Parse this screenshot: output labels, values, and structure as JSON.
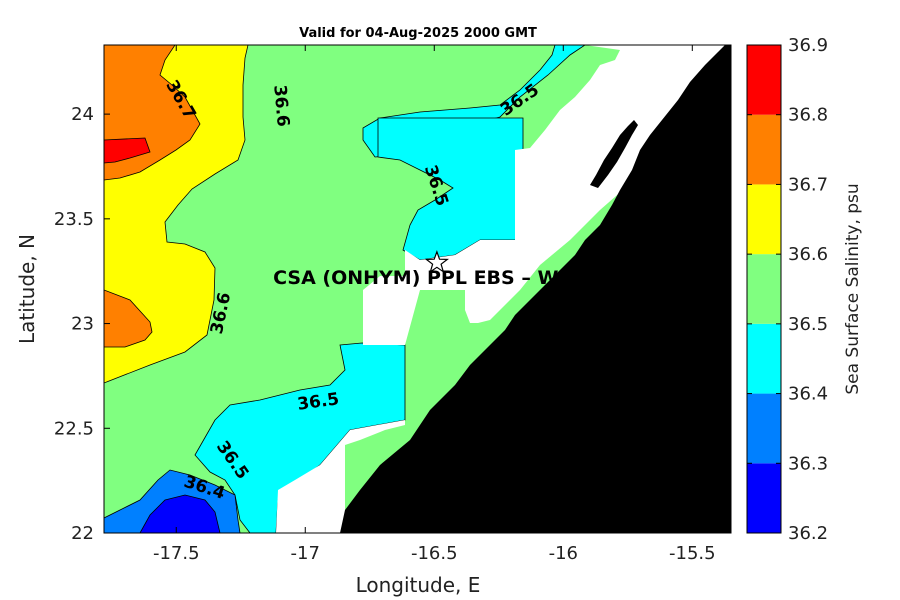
{
  "title": "Valid for 04-Aug-2025 2000 GMT",
  "map": {
    "x_axis_label": "Longitude, E",
    "y_axis_label": "Latitude, N",
    "xlim": [
      -17.78,
      -15.35
    ],
    "ylim": [
      22.0,
      24.33
    ],
    "x_ticks": [
      {
        "value": -17.5,
        "label": "-17.5"
      },
      {
        "value": -17.0,
        "label": "-17"
      },
      {
        "value": -16.5,
        "label": "-16.5"
      },
      {
        "value": -16.0,
        "label": "-16"
      },
      {
        "value": -15.5,
        "label": "-15.5"
      }
    ],
    "y_ticks": [
      {
        "value": 22.0,
        "label": "22"
      },
      {
        "value": 22.5,
        "label": "22.5"
      },
      {
        "value": 23.0,
        "label": "23"
      },
      {
        "value": 23.5,
        "label": "23.5"
      },
      {
        "value": 24.0,
        "label": "24"
      }
    ],
    "site_marker": {
      "lon": -16.49,
      "lat": 23.29,
      "label": "CSA (ONHYM) PPL EBS  – We"
    },
    "contour_labels": [
      {
        "lon": -17.48,
        "lat": 24.07,
        "text": "36.7",
        "angle": 60
      },
      {
        "lon": -17.09,
        "lat": 24.04,
        "text": "36.6",
        "angle": 85
      },
      {
        "lon": -16.17,
        "lat": 24.07,
        "text": "36.5",
        "angle": -35
      },
      {
        "lon": -16.49,
        "lat": 23.66,
        "text": "36.5",
        "angle": 72
      },
      {
        "lon": -17.33,
        "lat": 23.05,
        "text": "36.6",
        "angle": -78
      },
      {
        "lon": -16.95,
        "lat": 22.63,
        "text": "36.5",
        "angle": -8
      },
      {
        "lon": -17.28,
        "lat": 22.35,
        "text": "36.5",
        "angle": 55
      },
      {
        "lon": -17.39,
        "lat": 22.22,
        "text": "36.4",
        "angle": 18
      }
    ]
  },
  "colorbar": {
    "label": "Sea Surface Salinity, psu",
    "levels": [
      {
        "label": "36.2",
        "value": 36.2
      },
      {
        "label": "36.3",
        "value": 36.3
      },
      {
        "label": "36.4",
        "value": 36.4
      },
      {
        "label": "36.5",
        "value": 36.5
      },
      {
        "label": "36.6",
        "value": 36.6
      },
      {
        "label": "36.7",
        "value": 36.7
      },
      {
        "label": "36.8",
        "value": 36.8
      },
      {
        "label": "36.9",
        "value": 36.9
      }
    ],
    "bands": [
      {
        "from": 36.2,
        "to": 36.3,
        "color": "#0000ff"
      },
      {
        "from": 36.3,
        "to": 36.4,
        "color": "#0080ff"
      },
      {
        "from": 36.4,
        "to": 36.5,
        "color": "#00ffff"
      },
      {
        "from": 36.5,
        "to": 36.6,
        "color": "#80ff80"
      },
      {
        "from": 36.6,
        "to": 36.7,
        "color": "#ffff00"
      },
      {
        "from": 36.7,
        "to": 36.8,
        "color": "#ff8000"
      },
      {
        "from": 36.8,
        "to": 36.9,
        "color": "#ff0000"
      }
    ]
  },
  "colors": {
    "land": "#000000",
    "no_data": "#ffffff",
    "salinity_36_3_36_4": "#0080ff",
    "salinity_36_4_36_5": "#00ffff",
    "salinity_36_5_36_6": "#80ff80",
    "salinity_36_6_36_7": "#ffff00",
    "salinity_36_7_36_8": "#ff8000",
    "salinity_36_8_36_9": "#ff0000"
  }
}
